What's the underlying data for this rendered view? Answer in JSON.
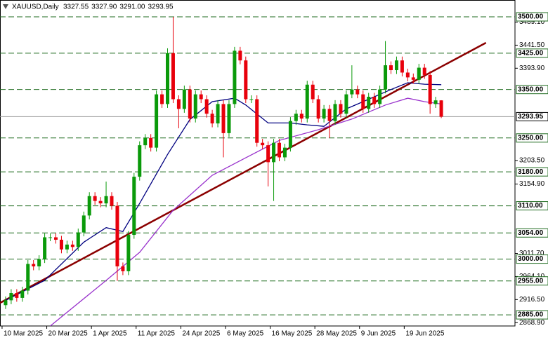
{
  "chart_data": {
    "type": "candlestick",
    "header": {
      "symbol": "XAUUSD,Daily",
      "values": [
        "3327.55",
        "3327.90",
        "3291.00",
        "3293.95"
      ]
    },
    "open": [
      2905,
      2915,
      2930,
      2920,
      2935,
      2990,
      2985,
      3000,
      3045,
      3045,
      3040,
      3020,
      3030,
      3025,
      3055,
      3090,
      3130,
      3120,
      3115,
      3130,
      3110,
      2985,
      2975,
      3050,
      3170,
      3235,
      3250,
      3230,
      3340,
      3320,
      3425,
      3330,
      3310,
      3350,
      3290,
      3340,
      3330,
      3300,
      3280,
      3320,
      3260,
      3320,
      3430,
      3410,
      3330,
      3330,
      3240,
      3235,
      3200,
      3240,
      3210,
      3230,
      3285,
      3300,
      3290,
      3360,
      3330,
      3290,
      3310,
      3285,
      3320,
      3300,
      3340,
      3350,
      3340,
      3310,
      3335,
      3320,
      3350,
      3400,
      3390,
      3410,
      3385,
      3375,
      3370,
      3395,
      3380,
      3320,
      3327.55
    ],
    "high": [
      2923,
      2938,
      2938,
      2943,
      2998,
      2998,
      3008,
      3053,
      3053,
      3053,
      3048,
      3038,
      3038,
      3063,
      3098,
      3138,
      3138,
      3128,
      3160,
      3138,
      3118,
      2993,
      3058,
      3178,
      3243,
      3258,
      3258,
      3348,
      3348,
      3435,
      3500,
      3338,
      3358,
      3358,
      3348,
      3348,
      3338,
      3308,
      3328,
      3328,
      3328,
      3438,
      3438,
      3418,
      3338,
      3338,
      3248,
      3243,
      3248,
      3248,
      3238,
      3293,
      3308,
      3308,
      3368,
      3368,
      3338,
      3318,
      3318,
      3328,
      3328,
      3348,
      3400,
      3358,
      3348,
      3343,
      3343,
      3358,
      3450,
      3408,
      3418,
      3418,
      3393,
      3383,
      3403,
      3403,
      3388,
      3335,
      3327.9
    ],
    "low": [
      2897,
      2907,
      2912,
      2912,
      2927,
      2977,
      2977,
      2992,
      3037,
      3032,
      3012,
      3012,
      3017,
      3017,
      3047,
      3082,
      3112,
      3107,
      3107,
      3102,
      2955,
      2967,
      2967,
      3042,
      3162,
      3227,
      3222,
      3222,
      3312,
      3312,
      3322,
      3270,
      3302,
      3282,
      3282,
      3322,
      3292,
      3272,
      3272,
      3210,
      3252,
      3312,
      3402,
      3322,
      3322,
      3232,
      3227,
      3150,
      3120,
      3202,
      3202,
      3222,
      3277,
      3282,
      3282,
      3322,
      3282,
      3282,
      3250,
      3277,
      3292,
      3292,
      3332,
      3332,
      3302,
      3302,
      3312,
      3312,
      3342,
      3382,
      3382,
      3377,
      3367,
      3362,
      3362,
      3372,
      3300,
      3312,
      3291
    ],
    "close": [
      2915,
      2930,
      2920,
      2935,
      2990,
      2985,
      3000,
      3045,
      3045,
      3040,
      3020,
      3030,
      3025,
      3055,
      3090,
      3130,
      3120,
      3115,
      3130,
      3110,
      2985,
      2975,
      3050,
      3170,
      3235,
      3250,
      3230,
      3340,
      3320,
      3425,
      3330,
      3310,
      3350,
      3290,
      3340,
      3330,
      3300,
      3280,
      3320,
      3260,
      3320,
      3430,
      3410,
      3330,
      3330,
      3240,
      3235,
      3200,
      3240,
      3210,
      3230,
      3285,
      3300,
      3290,
      3360,
      3330,
      3290,
      3310,
      3285,
      3320,
      3300,
      3340,
      3350,
      3340,
      3310,
      3335,
      3320,
      3350,
      3400,
      3390,
      3410,
      3385,
      3375,
      3370,
      3395,
      3380,
      3320,
      3327.55,
      3293.95
    ],
    "bull_color": "#0a9a0a",
    "bear_color": "#e8000b",
    "overlays": [
      {
        "color": "#8b0000",
        "width": 2.5,
        "x": [
          -1,
          86
        ],
        "values": [
          2909.6,
          3446.5
        ]
      },
      {
        "color": "#000080",
        "width": 1.3,
        "x": [
          0,
          7,
          14,
          18,
          21,
          24,
          29,
          33,
          37,
          41,
          43,
          47,
          51,
          54,
          57,
          61,
          64,
          69,
          72,
          75,
          78
        ],
        "values": [
          2915,
          2956,
          3035,
          3065,
          3057,
          3115,
          3216,
          3288,
          3325,
          3332,
          3318,
          3281,
          3281,
          3277,
          3274,
          3310,
          3325,
          3350,
          3364,
          3361,
          3360
        ]
      },
      {
        "color": "#9932cc",
        "width": 1.3,
        "x": [
          8,
          18,
          24,
          30,
          37,
          43,
          49,
          56,
          62,
          68,
          72,
          75,
          78
        ],
        "values": [
          2862,
          2956,
          3014,
          3101,
          3173,
          3209,
          3245,
          3267,
          3289,
          3318,
          3332,
          3325,
          3320
        ]
      }
    ],
    "levels": [
      {
        "value": 3500,
        "label": "3500.00"
      },
      {
        "value": 3425,
        "label": "3425.00"
      },
      {
        "value": 3350,
        "label": "3350.00"
      },
      {
        "value": 3250,
        "label": "3250.00"
      },
      {
        "value": 3180,
        "label": "3180.00"
      },
      {
        "value": 3110,
        "label": "3110.00"
      },
      {
        "value": 3054,
        "label": "3054.00"
      },
      {
        "value": 3000,
        "label": "3000.00"
      },
      {
        "value": 2955,
        "label": "2955.00"
      },
      {
        "value": 2885,
        "label": "2885.00"
      }
    ],
    "level_color": "#1f6b1f",
    "price_line": {
      "value": 3293.95,
      "label": "3293.95"
    },
    "ylim": [
      2862,
      3534.7
    ],
    "yticks": [
      {
        "value": 3489.1,
        "label": "3489.10"
      },
      {
        "value": 3441.5,
        "label": "3441.50"
      },
      {
        "value": 3393.9,
        "label": "3393.90"
      },
      {
        "value": 3203.5,
        "label": "3203.50"
      },
      {
        "value": 3154.9,
        "label": "3154.90"
      },
      {
        "value": 3011.7,
        "label": "3011.70"
      },
      {
        "value": 2964.1,
        "label": "2964.10"
      },
      {
        "value": 2916.5,
        "label": "2916.50"
      },
      {
        "value": 2868.9,
        "label": "2868.90"
      }
    ],
    "xlim": [
      -1,
      91.2
    ],
    "xticks": [
      {
        "value": 0,
        "label": "10 Mar 2025"
      },
      {
        "value": 8,
        "label": "20 Mar 2025"
      },
      {
        "value": 16,
        "label": "1 Apr 2025"
      },
      {
        "value": 24,
        "label": "11 Apr 2025"
      },
      {
        "value": 32,
        "label": "24 Apr 2025"
      },
      {
        "value": 40,
        "label": "6 May 2025"
      },
      {
        "value": 48,
        "label": "16 May 2025"
      },
      {
        "value": 56,
        "label": "28 May 2025"
      },
      {
        "value": 64,
        "label": "9 Jun 2025"
      },
      {
        "value": 72,
        "label": "19 Jun 2025"
      }
    ]
  }
}
